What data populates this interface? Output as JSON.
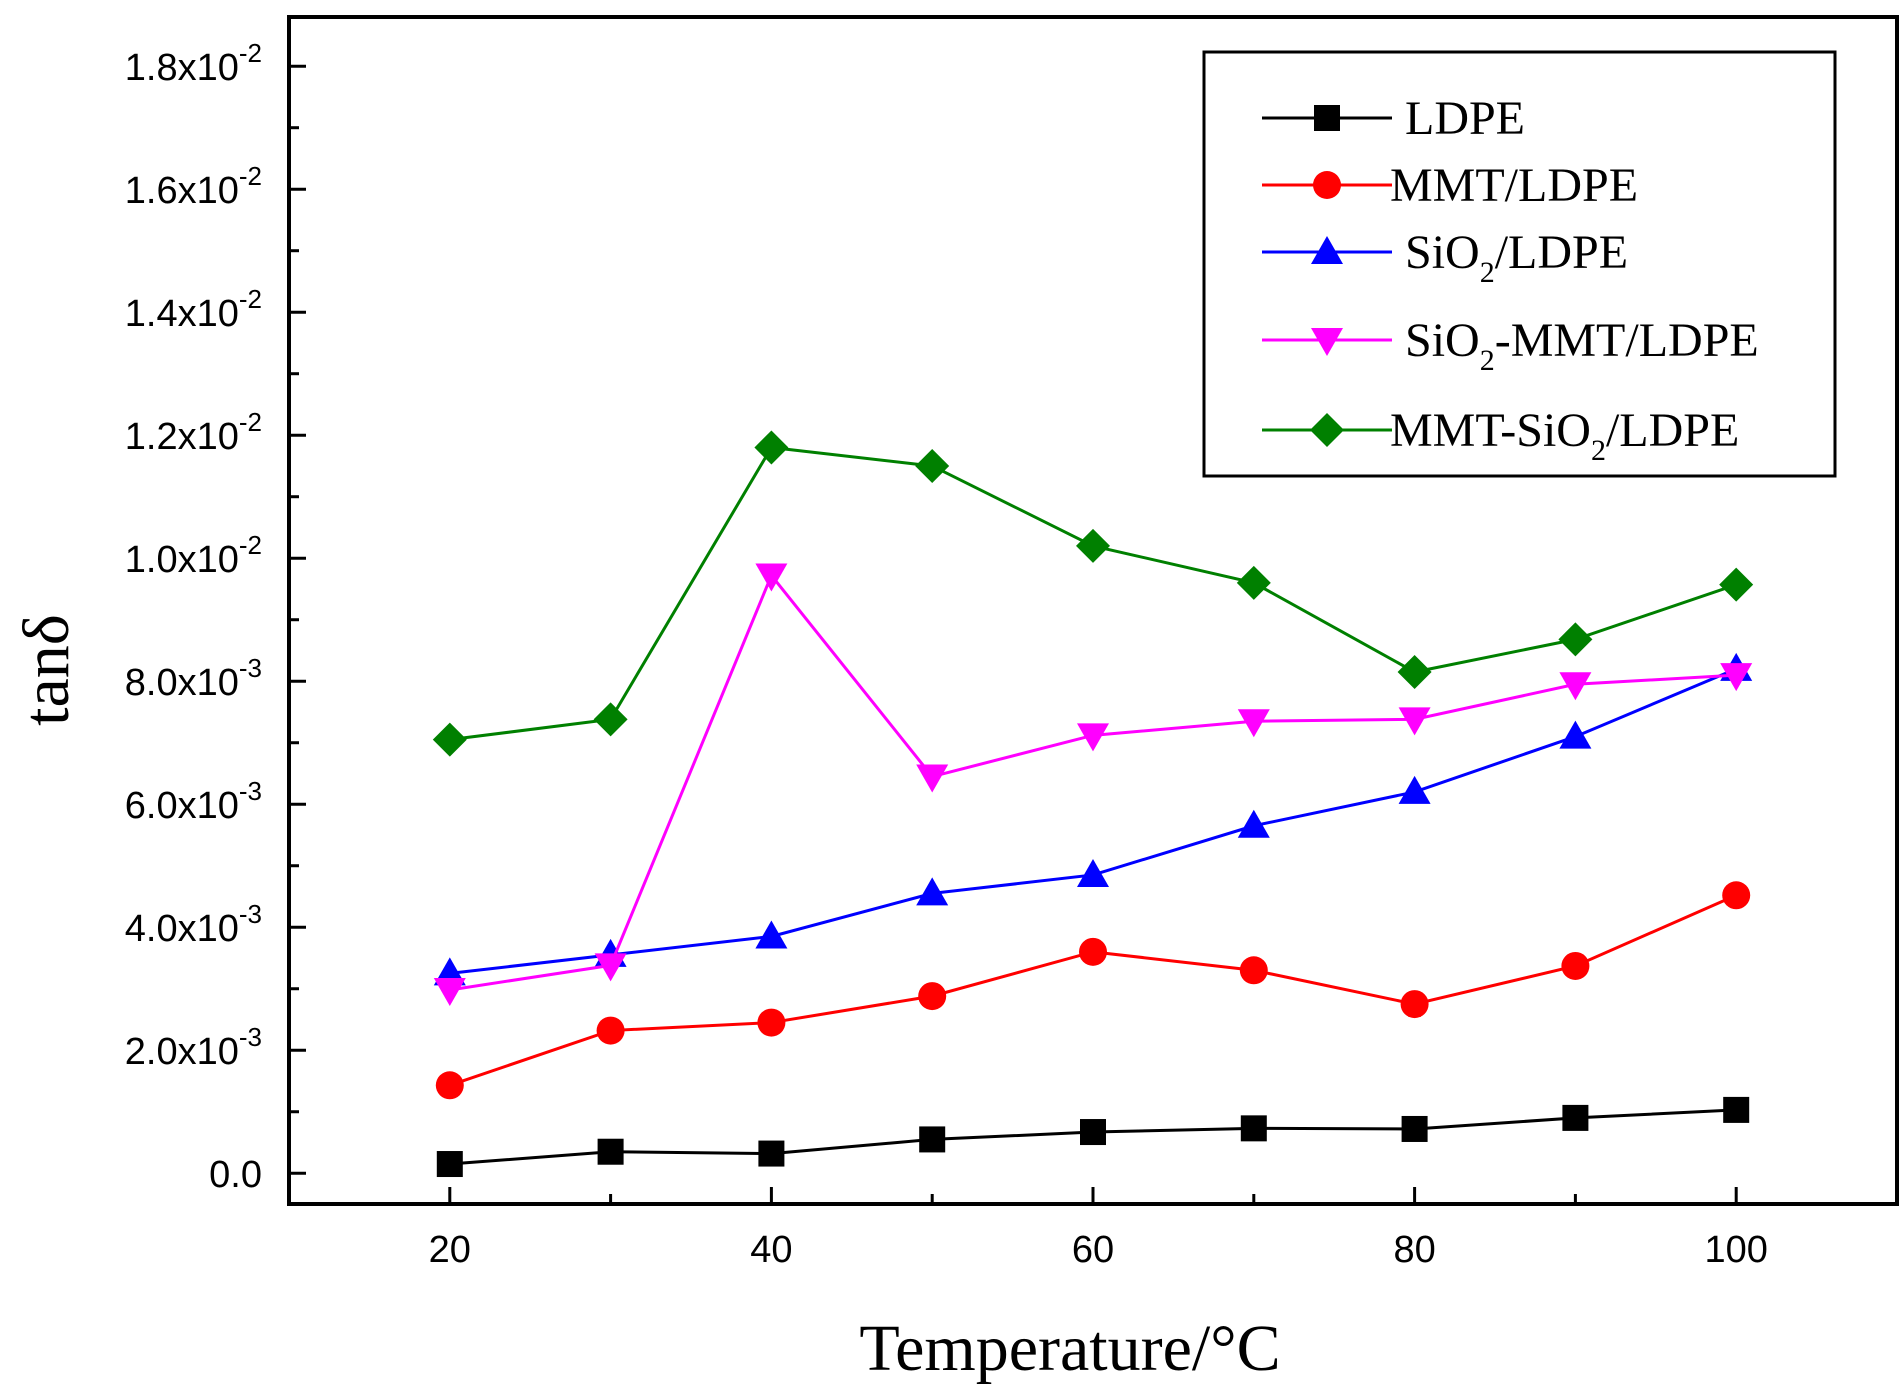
{
  "chart_data": {
    "type": "line",
    "xlabel": "Temperature/°C",
    "ylabel": "tanδ",
    "xlim": [
      10,
      110
    ],
    "ylim": [
      -0.0005,
      0.0188
    ],
    "x": [
      20,
      30,
      40,
      50,
      60,
      70,
      80,
      90,
      100
    ],
    "x_ticks": [
      20,
      40,
      60,
      80,
      100
    ],
    "y_ticks": [
      {
        "value": 0.0,
        "mantissa": "0.0",
        "exponent": ""
      },
      {
        "value": 0.002,
        "mantissa": "2.0x10",
        "exponent": "-3"
      },
      {
        "value": 0.004,
        "mantissa": "4.0x10",
        "exponent": "-3"
      },
      {
        "value": 0.006,
        "mantissa": "6.0x10",
        "exponent": "-3"
      },
      {
        "value": 0.008,
        "mantissa": "8.0x10",
        "exponent": "-3"
      },
      {
        "value": 0.01,
        "mantissa": "1.0x10",
        "exponent": "-2"
      },
      {
        "value": 0.012,
        "mantissa": "1.2x10",
        "exponent": "-2"
      },
      {
        "value": 0.014,
        "mantissa": "1.4x10",
        "exponent": "-2"
      },
      {
        "value": 0.016,
        "mantissa": "1.6x10",
        "exponent": "-2"
      },
      {
        "value": 0.018,
        "mantissa": "1.8x10",
        "exponent": "-2"
      }
    ],
    "legend_position": "top-right",
    "series": [
      {
        "name": "LDPE",
        "label_parts": [
          "LDPE"
        ],
        "color": "#000000",
        "marker": "square",
        "values": [
          0.00015,
          0.00035,
          0.00032,
          0.00055,
          0.00067,
          0.00073,
          0.00072,
          0.0009,
          0.00103
        ]
      },
      {
        "name": "MMT/LDPE",
        "label_parts": [
          "MMT/LDPE"
        ],
        "color": "#ff0000",
        "marker": "circle",
        "values": [
          0.00143,
          0.00232,
          0.00245,
          0.00288,
          0.0036,
          0.0033,
          0.00275,
          0.00337,
          0.00452
        ]
      },
      {
        "name": "SiO2/LDPE",
        "label_parts": [
          "SiO",
          "2",
          "/LDPE"
        ],
        "color": "#0000ff",
        "marker": "triangle-up",
        "values": [
          0.00325,
          0.00355,
          0.00385,
          0.00455,
          0.00485,
          0.00565,
          0.0062,
          0.0071,
          0.0082
        ]
      },
      {
        "name": "SiO2-MMT/LDPE",
        "label_parts": [
          "SiO",
          "2",
          "-MMT/LDPE"
        ],
        "color": "#ff00ff",
        "marker": "triangle-down",
        "values": [
          0.00298,
          0.00338,
          0.00972,
          0.00645,
          0.00712,
          0.00735,
          0.00738,
          0.00795,
          0.0081
        ]
      },
      {
        "name": "MMT-SiO2/LDPE",
        "label_parts": [
          "MMT-SiO",
          "2",
          "/LDPE"
        ],
        "color": "#008000",
        "marker": "diamond",
        "values": [
          0.00705,
          0.00738,
          0.0118,
          0.0115,
          0.0102,
          0.0096,
          0.00815,
          0.00868,
          0.00957
        ]
      }
    ]
  }
}
